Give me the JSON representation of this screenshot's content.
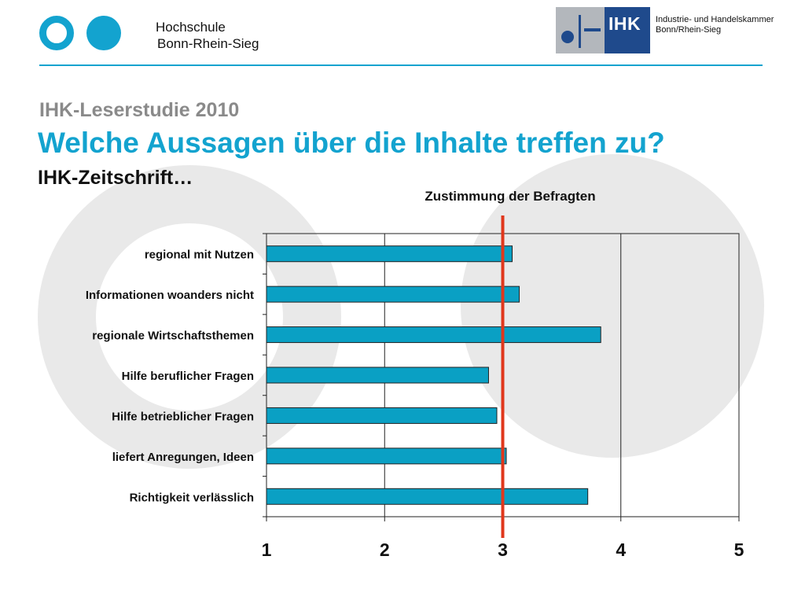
{
  "header": {
    "university_line1": "Hochschule",
    "university_line2": "Bonn-Rhein-Sieg",
    "ihk_logo_text": "IHK",
    "ihk_name_line1": "Industrie- und Handelskammer",
    "ihk_name_line2": "Bonn/Rhein-Sieg"
  },
  "slide": {
    "title1": "IHK-Leserstudie 2010",
    "title2": "Welche Aussagen über die Inhalte treffen zu?",
    "title3": "IHK-Zeitschrift…"
  },
  "colors": {
    "brand_blue": "#13a3cf",
    "bar_fill": "#0aa0c4",
    "reference_line": "#e0371c",
    "ihk_blue": "#1f4a8c"
  },
  "chart_data": {
    "type": "bar",
    "orientation": "horizontal",
    "title": "Zustimmung der Befragten",
    "categories": [
      "regional mit Nutzen",
      "Informationen woanders nicht",
      "regionale Wirtschaftsthemen",
      "Hilfe beruflicher Fragen",
      "Hilfe betrieblicher Fragen",
      "liefert Anregungen, Ideen",
      "Richtigkeit verlässlich"
    ],
    "values": [
      3.08,
      3.14,
      3.83,
      2.88,
      2.95,
      3.03,
      3.72
    ],
    "xlim": [
      1,
      5
    ],
    "xticks": [
      "1",
      "2",
      "3",
      "4",
      "5"
    ],
    "reference_value": 3,
    "grid": "vertical",
    "xlabel": "",
    "ylabel": ""
  }
}
